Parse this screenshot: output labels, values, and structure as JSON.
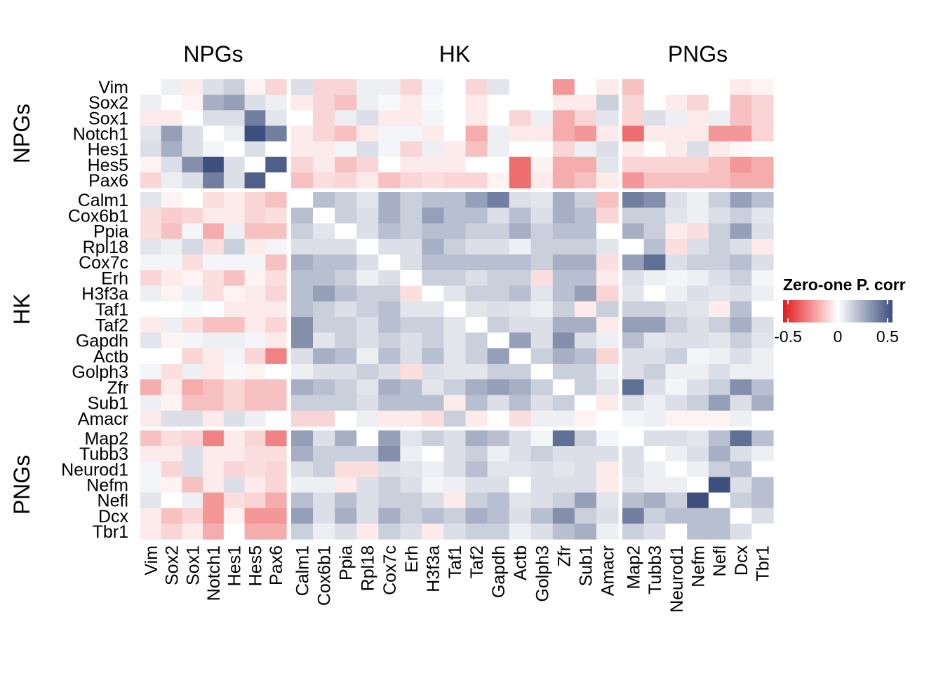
{
  "chart_data": {
    "type": "heatmap",
    "genes": [
      "Vim",
      "Sox2",
      "Sox1",
      "Notch1",
      "Hes1",
      "Hes5",
      "Pax6",
      "Calm1",
      "Cox6b1",
      "Ppia",
      "Rpl18",
      "Cox7c",
      "Erh",
      "H3f3a",
      "Taf1",
      "Taf2",
      "Gapdh",
      "Actb",
      "Golph3",
      "Zfr",
      "Sub1",
      "Amacr",
      "Map2",
      "Tubb3",
      "Neurod1",
      "Nefm",
      "Nefl",
      "Dcx",
      "Tbr1"
    ],
    "groups": [
      {
        "name": "NPGs",
        "count": 7
      },
      {
        "name": "HK",
        "count": 15
      },
      {
        "name": "PNGs",
        "count": 7
      }
    ],
    "values": [
      [
        0.0,
        0.05,
        -0.05,
        0.1,
        0.15,
        -0.03,
        -0.1,
        0.1,
        -0.1,
        -0.1,
        0.05,
        0.05,
        -0.1,
        0.03,
        0.0,
        -0.1,
        0.08,
        0.0,
        0.0,
        -0.25,
        0.0,
        -0.05,
        -0.15,
        0.0,
        0.0,
        0.0,
        0.0,
        -0.05,
        -0.03
      ],
      [
        0.05,
        0.0,
        -0.03,
        0.25,
        0.3,
        0.1,
        0.05,
        -0.05,
        -0.1,
        -0.15,
        0.05,
        0.02,
        -0.05,
        0.02,
        0.0,
        -0.05,
        0.0,
        0.0,
        0.0,
        -0.05,
        -0.05,
        0.15,
        -0.1,
        0.0,
        -0.05,
        -0.1,
        0.0,
        -0.15,
        -0.1
      ],
      [
        -0.05,
        -0.05,
        0.0,
        0.1,
        0.1,
        0.4,
        0.08,
        0.0,
        -0.1,
        0.05,
        0.1,
        -0.05,
        -0.05,
        0.03,
        0.0,
        -0.05,
        0.0,
        -0.1,
        0.05,
        -0.2,
        -0.1,
        0.08,
        -0.1,
        0.1,
        0.05,
        -0.05,
        0.05,
        -0.15,
        -0.1
      ],
      [
        0.08,
        0.3,
        0.1,
        0.0,
        0.05,
        0.55,
        0.4,
        -0.05,
        -0.1,
        -0.15,
        -0.05,
        0.03,
        0.03,
        -0.05,
        0.0,
        -0.2,
        0.05,
        -0.05,
        -0.05,
        -0.2,
        -0.25,
        -0.05,
        -0.35,
        -0.05,
        -0.05,
        -0.05,
        -0.25,
        -0.25,
        -0.1
      ],
      [
        0.1,
        0.25,
        0.1,
        0.03,
        0.0,
        0.1,
        0.0,
        -0.05,
        -0.05,
        0.03,
        0.1,
        0.03,
        -0.1,
        0.05,
        -0.05,
        -0.15,
        0.05,
        0.0,
        0.0,
        -0.1,
        0.05,
        0.1,
        -0.05,
        0.0,
        -0.05,
        0.1,
        -0.05,
        -0.02,
        0.0
      ],
      [
        -0.03,
        0.1,
        0.35,
        0.6,
        0.1,
        0.0,
        0.5,
        -0.1,
        -0.05,
        -0.15,
        -0.1,
        0.0,
        -0.05,
        -0.05,
        -0.05,
        0.0,
        0.0,
        -0.35,
        -0.03,
        -0.2,
        -0.2,
        0.08,
        -0.1,
        -0.1,
        -0.1,
        -0.1,
        -0.15,
        -0.25,
        -0.2
      ],
      [
        -0.1,
        0.05,
        0.1,
        0.4,
        0.1,
        0.5,
        0.0,
        -0.15,
        -0.08,
        -0.1,
        -0.05,
        -0.15,
        -0.1,
        -0.08,
        -0.1,
        -0.1,
        -0.03,
        -0.35,
        -0.05,
        -0.2,
        -0.15,
        -0.05,
        -0.25,
        -0.15,
        -0.15,
        -0.15,
        -0.15,
        -0.2,
        -0.2
      ],
      [
        0.08,
        -0.03,
        0.0,
        -0.08,
        -0.05,
        -0.1,
        -0.15,
        0.0,
        0.2,
        0.15,
        0.08,
        0.25,
        0.15,
        0.2,
        0.2,
        0.3,
        0.4,
        0.1,
        0.08,
        0.25,
        0.15,
        -0.15,
        0.4,
        0.35,
        0.1,
        0.05,
        0.15,
        0.3,
        0.2
      ],
      [
        -0.08,
        -0.12,
        -0.1,
        -0.05,
        -0.05,
        -0.1,
        -0.08,
        0.2,
        0.0,
        0.15,
        0.1,
        0.25,
        0.15,
        0.3,
        0.2,
        0.2,
        0.1,
        0.2,
        0.1,
        0.25,
        0.2,
        -0.1,
        0.15,
        0.15,
        0.08,
        0.05,
        0.1,
        0.15,
        0.08
      ],
      [
        -0.08,
        -0.15,
        0.03,
        -0.2,
        0.05,
        -0.15,
        -0.15,
        0.15,
        0.08,
        0.0,
        0.1,
        0.2,
        0.15,
        0.2,
        0.2,
        0.15,
        0.15,
        0.25,
        0.15,
        0.2,
        0.2,
        0.0,
        0.25,
        0.15,
        -0.05,
        -0.08,
        0.15,
        0.3,
        0.1
      ],
      [
        0.08,
        0.05,
        0.12,
        -0.08,
        0.15,
        -0.05,
        0.03,
        0.1,
        0.1,
        0.1,
        0.0,
        0.1,
        0.1,
        0.25,
        0.15,
        0.1,
        0.1,
        0.05,
        0.15,
        0.15,
        0.15,
        0.08,
        0.0,
        0.2,
        -0.08,
        0.1,
        0.15,
        0.1,
        -0.05
      ],
      [
        0.03,
        0.03,
        -0.08,
        0.03,
        0.03,
        0.03,
        -0.15,
        0.25,
        0.2,
        0.2,
        0.1,
        0.0,
        0.1,
        0.2,
        0.2,
        0.2,
        0.2,
        0.2,
        0.15,
        0.25,
        0.25,
        -0.08,
        0.3,
        0.45,
        0.1,
        0.15,
        0.15,
        0.2,
        0.1
      ],
      [
        -0.1,
        -0.05,
        -0.03,
        -0.08,
        -0.15,
        -0.03,
        -0.08,
        0.2,
        0.2,
        0.15,
        0.05,
        0.1,
        0.0,
        0.15,
        0.15,
        0.1,
        0.15,
        0.15,
        -0.08,
        0.2,
        0.2,
        -0.05,
        0.1,
        0.05,
        0.03,
        0.05,
        0.1,
        0.15,
        0.03
      ],
      [
        0.05,
        -0.03,
        0.05,
        -0.08,
        -0.03,
        -0.05,
        -0.1,
        0.2,
        0.3,
        0.2,
        0.15,
        0.15,
        -0.08,
        0.0,
        0.08,
        0.15,
        0.15,
        0.2,
        0.08,
        0.2,
        0.3,
        -0.1,
        0.08,
        0.0,
        0.05,
        0.1,
        0.08,
        0.1,
        0.05
      ],
      [
        0.0,
        0.0,
        0.02,
        0.0,
        -0.05,
        -0.05,
        -0.05,
        0.2,
        0.15,
        0.1,
        0.15,
        0.2,
        0.08,
        0.08,
        0.0,
        0.08,
        0.1,
        0.08,
        0.05,
        0.15,
        -0.05,
        0.15,
        0.15,
        0.15,
        0.1,
        0.08,
        -0.05,
        0.2,
        0.0
      ],
      [
        -0.05,
        0.05,
        -0.08,
        -0.15,
        -0.15,
        -0.05,
        -0.1,
        0.35,
        0.15,
        0.15,
        0.1,
        0.2,
        0.15,
        0.15,
        0.08,
        0.0,
        0.15,
        0.1,
        0.1,
        0.25,
        0.25,
        -0.05,
        0.3,
        0.3,
        0.15,
        0.1,
        0.15,
        0.25,
        0.1
      ],
      [
        0.08,
        -0.03,
        0.03,
        0.05,
        0.05,
        0.03,
        -0.05,
        0.35,
        0.08,
        0.15,
        0.1,
        0.15,
        0.1,
        0.15,
        0.08,
        0.15,
        0.0,
        0.3,
        0.1,
        0.35,
        0.1,
        0.05,
        0.2,
        0.08,
        0.1,
        0.1,
        0.08,
        0.15,
        0.08
      ],
      [
        0.0,
        0.0,
        -0.1,
        -0.05,
        0.03,
        -0.1,
        -0.3,
        0.1,
        0.25,
        0.2,
        0.05,
        0.2,
        0.1,
        0.2,
        0.08,
        0.15,
        0.3,
        0.0,
        0.15,
        0.25,
        0.2,
        -0.1,
        0.1,
        0.1,
        0.15,
        0.03,
        0.05,
        0.1,
        0.05
      ],
      [
        0.03,
        -0.08,
        0.05,
        -0.05,
        0.02,
        -0.03,
        0.0,
        0.05,
        0.1,
        0.1,
        0.15,
        0.1,
        -0.08,
        0.1,
        0.08,
        0.08,
        0.15,
        0.15,
        0.0,
        0.15,
        0.15,
        0.05,
        0.1,
        0.15,
        0.05,
        0.05,
        0.1,
        0.05,
        0.05
      ],
      [
        -0.2,
        -0.05,
        -0.2,
        -0.15,
        -0.1,
        -0.15,
        -0.15,
        0.25,
        0.2,
        0.15,
        0.08,
        0.25,
        0.2,
        0.08,
        0.15,
        0.25,
        0.3,
        0.25,
        0.15,
        0.0,
        0.15,
        0.08,
        0.45,
        0.1,
        0.03,
        0.1,
        0.15,
        0.35,
        0.2
      ],
      [
        0.05,
        -0.03,
        -0.15,
        -0.15,
        -0.1,
        -0.15,
        -0.15,
        0.15,
        0.15,
        0.15,
        0.1,
        0.2,
        0.2,
        0.2,
        -0.05,
        0.2,
        0.1,
        0.2,
        0.1,
        0.15,
        0.0,
        -0.05,
        0.1,
        0.05,
        0.1,
        0.15,
        0.3,
        0.1,
        0.25
      ],
      [
        -0.05,
        0.1,
        0.1,
        -0.05,
        0.1,
        0.05,
        0.0,
        -0.1,
        -0.1,
        0.0,
        0.05,
        -0.05,
        -0.05,
        -0.08,
        0.15,
        -0.05,
        0.0,
        -0.08,
        0.05,
        0.05,
        -0.03,
        0.0,
        0.03,
        0.05,
        -0.03,
        -0.03,
        -0.03,
        0.05,
        0.0
      ],
      [
        -0.15,
        -0.08,
        -0.1,
        -0.3,
        -0.05,
        -0.1,
        -0.3,
        0.3,
        0.1,
        0.25,
        0.0,
        0.3,
        0.08,
        0.15,
        0.1,
        0.25,
        0.2,
        0.1,
        0.03,
        0.45,
        0.15,
        0.03,
        0.0,
        0.1,
        0.1,
        0.08,
        0.2,
        0.45,
        0.2
      ],
      [
        -0.05,
        -0.05,
        0.1,
        -0.05,
        -0.05,
        -0.08,
        -0.08,
        0.25,
        0.15,
        0.15,
        0.15,
        0.35,
        0.05,
        0.0,
        0.1,
        0.15,
        0.05,
        0.1,
        0.15,
        0.1,
        0.1,
        0.1,
        0.1,
        0.0,
        0.05,
        0.1,
        0.25,
        0.1,
        0.05
      ],
      [
        0.03,
        -0.1,
        0.1,
        -0.05,
        -0.1,
        -0.08,
        -0.1,
        0.1,
        0.15,
        -0.08,
        -0.08,
        0.1,
        0.08,
        0.05,
        0.1,
        0.2,
        0.08,
        0.08,
        0.1,
        0.08,
        0.1,
        -0.05,
        0.1,
        0.05,
        0.0,
        0.05,
        0.15,
        0.2,
        0.0
      ],
      [
        0.03,
        -0.03,
        -0.15,
        -0.05,
        0.1,
        -0.05,
        -0.1,
        0.05,
        0.05,
        -0.05,
        0.1,
        0.15,
        0.1,
        0.03,
        0.05,
        0.1,
        0.1,
        0.0,
        0.1,
        0.1,
        0.1,
        -0.05,
        0.08,
        0.05,
        0.05,
        0.0,
        0.55,
        0.1,
        0.2
      ],
      [
        0.08,
        0.0,
        0.05,
        -0.25,
        -0.08,
        -0.1,
        -0.2,
        0.2,
        0.1,
        0.2,
        0.1,
        0.15,
        0.15,
        0.1,
        -0.05,
        0.15,
        0.2,
        0.08,
        0.1,
        0.15,
        0.3,
        0.08,
        0.2,
        0.25,
        0.15,
        0.55,
        0.0,
        0.15,
        0.2
      ],
      [
        -0.05,
        -0.15,
        -0.1,
        -0.25,
        -0.03,
        -0.25,
        -0.25,
        0.3,
        0.1,
        0.25,
        0.1,
        0.25,
        0.15,
        0.2,
        0.15,
        0.25,
        0.2,
        0.1,
        0.2,
        0.35,
        0.15,
        0.1,
        0.4,
        0.15,
        0.2,
        0.2,
        0.2,
        0.0,
        0.1
      ],
      [
        -0.05,
        -0.1,
        -0.05,
        -0.2,
        0.0,
        -0.2,
        -0.2,
        0.15,
        0.05,
        0.1,
        -0.05,
        0.15,
        0.1,
        -0.05,
        0.1,
        0.15,
        0.15,
        0.05,
        0.1,
        0.2,
        0.25,
        0.05,
        0.15,
        0.1,
        0.0,
        0.2,
        0.2,
        0.1,
        0.0
      ]
    ],
    "legend": {
      "title": "Zero-one P. corr",
      "ticks": [
        "-0.5",
        "0",
        "0.5"
      ],
      "range": [
        -0.55,
        0.55
      ],
      "colors": {
        "low": "#e41a1c",
        "mid": "#ffffff",
        "high": "#3d4f7d"
      }
    }
  }
}
